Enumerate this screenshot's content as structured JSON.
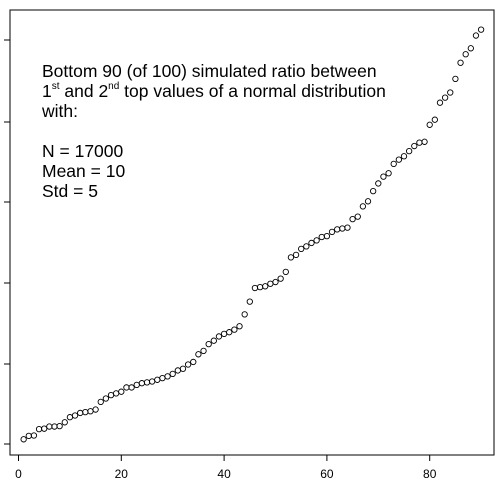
{
  "chart_data": {
    "type": "scatter",
    "title": "",
    "xlabel": "",
    "ylabel": "",
    "xlim": [
      0,
      92
    ],
    "x_ticks": [
      "0",
      "20",
      "40",
      "60",
      "80"
    ],
    "annotation": {
      "line1": "Bottom 90 (of 100) simulated ratio between",
      "line2_prefix": "1",
      "line2_sup1": "st",
      "line2_middle": " and 2",
      "line2_sup2": "nd",
      "line2_suffix": "  top values of a normal distribution",
      "line3": "with:",
      "param_n": "N = 17000",
      "param_mean": "Mean = 10",
      "param_std": "Std = 5"
    },
    "x": [
      1,
      2,
      3,
      4,
      5,
      6,
      7,
      8,
      9,
      10,
      11,
      12,
      13,
      14,
      15,
      16,
      17,
      18,
      19,
      20,
      21,
      22,
      23,
      24,
      25,
      26,
      27,
      28,
      29,
      30,
      31,
      32,
      33,
      34,
      35,
      36,
      37,
      38,
      39,
      40,
      41,
      42,
      43,
      44,
      45,
      46,
      47,
      48,
      49,
      50,
      51,
      52,
      53,
      54,
      55,
      56,
      57,
      58,
      59,
      60,
      61,
      62,
      63,
      64,
      65,
      66,
      67,
      68,
      69,
      70,
      71,
      72,
      73,
      74,
      75,
      76,
      77,
      78,
      79,
      80,
      81,
      82,
      83,
      84,
      85,
      86,
      87,
      88,
      89,
      90
    ],
    "y": [
      0.2,
      0.6,
      0.65,
      1.4,
      1.45,
      1.7,
      1.7,
      1.75,
      2.2,
      2.8,
      3.0,
      3.3,
      3.4,
      3.5,
      3.7,
      4.6,
      5.0,
      5.4,
      5.6,
      5.8,
      6.3,
      6.3,
      6.6,
      6.8,
      6.9,
      7.0,
      7.2,
      7.4,
      7.6,
      7.9,
      8.3,
      8.5,
      9.0,
      9.3,
      10.2,
      10.6,
      11.4,
      11.8,
      12.3,
      12.6,
      12.8,
      13.1,
      13.5,
      14.9,
      16.4,
      18.0,
      18.1,
      18.2,
      18.5,
      18.7,
      19.1,
      19.9,
      21.6,
      21.9,
      22.6,
      22.9,
      23.3,
      23.6,
      24.0,
      24.1,
      24.6,
      24.9,
      25.0,
      25.1,
      26.1,
      26.4,
      27.6,
      28.2,
      29.4,
      30.3,
      31.1,
      31.5,
      32.6,
      33.1,
      33.5,
      34.1,
      34.7,
      35.1,
      35.2,
      37.2,
      37.8,
      39.8,
      40.4,
      41.0,
      42.6,
      44.5,
      45.5,
      46.2,
      47.7,
      48.4
    ]
  }
}
